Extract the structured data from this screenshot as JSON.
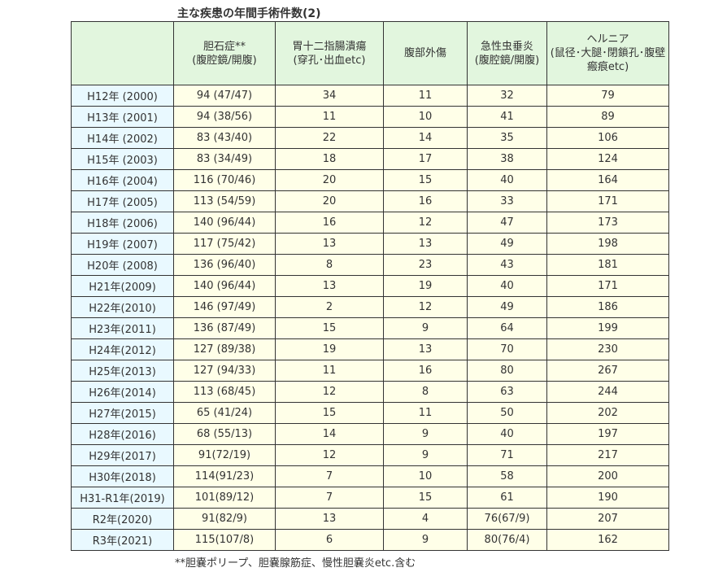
{
  "title": "主な疾患の年間手術件数(2)",
  "columns": [
    {
      "name": "胆石症**",
      "sub": "(腹腔鏡/開腹)"
    },
    {
      "name": "胃十二指腸潰瘍",
      "sub": "(穿孔･出血etc)"
    },
    {
      "name": "腹部外傷",
      "sub": ""
    },
    {
      "name": "急性虫垂炎",
      "sub": "(腹腔鏡/開腹)"
    },
    {
      "name": "ヘルニア",
      "sub": "(鼠径･大腿･閉鎖孔･腹壁瘢痕etc)"
    }
  ],
  "rows": [
    {
      "year": "H12年 (2000)",
      "values": [
        "94 (47/47)",
        "34",
        "11",
        "32",
        "79"
      ]
    },
    {
      "year": "H13年 (2001)",
      "values": [
        "94 (38/56)",
        "11",
        "10",
        "41",
        "89"
      ]
    },
    {
      "year": "H14年 (2002)",
      "values": [
        "83 (43/40)",
        "22",
        "14",
        "35",
        "106"
      ]
    },
    {
      "year": "H15年 (2003)",
      "values": [
        "83 (34/49)",
        "18",
        "17",
        "38",
        "124"
      ]
    },
    {
      "year": "H16年 (2004)",
      "values": [
        "116 (70/46)",
        "20",
        "15",
        "40",
        "164"
      ]
    },
    {
      "year": "H17年 (2005)",
      "values": [
        "113 (54/59)",
        "20",
        "16",
        "33",
        "171"
      ]
    },
    {
      "year": "H18年 (2006)",
      "values": [
        "140 (96/44)",
        "16",
        "12",
        "47",
        "173"
      ]
    },
    {
      "year": "H19年 (2007)",
      "values": [
        "117 (75/42)",
        "13",
        "13",
        "49",
        "198"
      ]
    },
    {
      "year": "H20年 (2008)",
      "values": [
        "136 (96/40)",
        "8",
        "23",
        "43",
        "181"
      ]
    },
    {
      "year": "H21年(2009)",
      "values": [
        "140 (96/44)",
        "13",
        "19",
        "40",
        "171"
      ]
    },
    {
      "year": "H22年(2010)",
      "values": [
        "146 (97/49)",
        "2",
        "12",
        "49",
        "186"
      ]
    },
    {
      "year": "H23年(2011)",
      "values": [
        "136 (87/49)",
        "15",
        "9",
        "64",
        "199"
      ]
    },
    {
      "year": "H24年(2012)",
      "values": [
        "127 (89/38)",
        "19",
        "13",
        "70",
        "230"
      ]
    },
    {
      "year": "H25年(2013)",
      "values": [
        "127 (94/33)",
        "11",
        "16",
        "80",
        "267"
      ]
    },
    {
      "year": "H26年(2014)",
      "values": [
        "113 (68/45)",
        "12",
        "8",
        "63",
        "244"
      ]
    },
    {
      "year": "H27年(2015)",
      "values": [
        "65 (41/24)",
        "15",
        "11",
        "50",
        "202"
      ]
    },
    {
      "year": "H28年(2016)",
      "values": [
        "68 (55/13)",
        "14",
        "9",
        "40",
        "197"
      ]
    },
    {
      "year": "H29年(2017)",
      "values": [
        "91(72/19)",
        "12",
        "9",
        "71",
        "217"
      ]
    },
    {
      "year": "H30年(2018)",
      "values": [
        "114(91/23)",
        "7",
        "10",
        "58",
        "200"
      ]
    },
    {
      "year": "H31-R1年(2019)",
      "values": [
        "101(89/12)",
        "7",
        "15",
        "61",
        "190"
      ]
    },
    {
      "year": "R2年(2020)",
      "values": [
        "91(82/9)",
        "13",
        "4",
        "76(67/9)",
        "207"
      ]
    },
    {
      "year": "R3年(2021)",
      "values": [
        "115(107/8)",
        "6",
        "9",
        "80(76/4)",
        "162"
      ]
    }
  ],
  "footnote": "**胆嚢ポリープ、胆嚢腺筋症、慢性胆嚢炎etc.含む",
  "colors": {
    "header_bg": "#e2f6de",
    "year_bg": "#e9f9ff",
    "cell_bg": "#ffffe8",
    "border": "#333333"
  }
}
